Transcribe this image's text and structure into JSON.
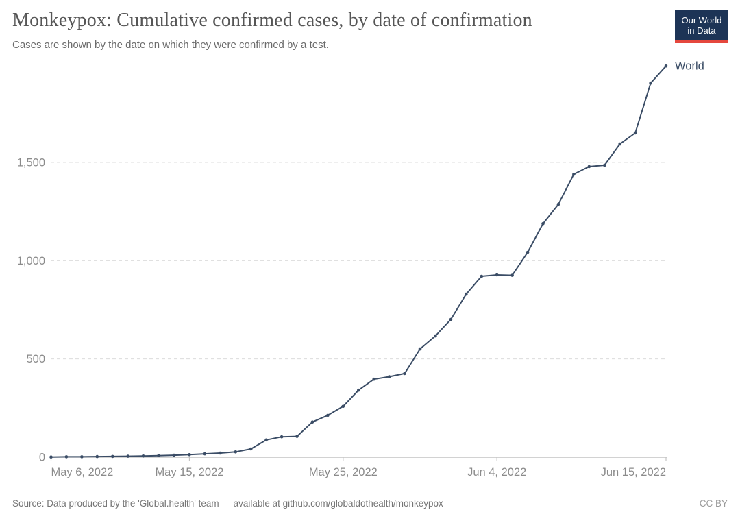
{
  "header": {
    "title": "Monkeypox: Cumulative confirmed cases, by date of confirmation",
    "subtitle": "Cases are shown by the date on which they were confirmed by a test.",
    "logo": {
      "line1": "Our World",
      "line2": "in Data",
      "bg_color": "#1d3456",
      "accent_color": "#e5473d"
    }
  },
  "chart_data": {
    "type": "line",
    "title": "Monkeypox: Cumulative confirmed cases, by date of confirmation",
    "xlabel": "",
    "ylabel": "",
    "grid": "horizontal-dashed",
    "legend_position": "end-of-line-label",
    "ylim": [
      0,
      2030
    ],
    "y_ticks": {
      "values": [
        0,
        500,
        1000,
        1500
      ],
      "labels": [
        "0",
        "500",
        "1,000",
        "1,500"
      ]
    },
    "x_ticks": [
      {
        "label": "May 6, 2022",
        "index": 0,
        "align": "start"
      },
      {
        "label": "May 15, 2022",
        "index": 9,
        "align": "middle"
      },
      {
        "label": "May 25, 2022",
        "index": 19,
        "align": "middle"
      },
      {
        "label": "Jun 4, 2022",
        "index": 29,
        "align": "middle"
      },
      {
        "label": "Jun 15, 2022",
        "index": 40,
        "align": "end"
      }
    ],
    "series": [
      {
        "name": "World",
        "color": "#3b4d66",
        "x": [
          "2022-05-06",
          "2022-05-07",
          "2022-05-08",
          "2022-05-09",
          "2022-05-10",
          "2022-05-11",
          "2022-05-12",
          "2022-05-13",
          "2022-05-14",
          "2022-05-15",
          "2022-05-16",
          "2022-05-17",
          "2022-05-18",
          "2022-05-19",
          "2022-05-20",
          "2022-05-21",
          "2022-05-22",
          "2022-05-23",
          "2022-05-24",
          "2022-05-25",
          "2022-05-26",
          "2022-05-27",
          "2022-05-28",
          "2022-05-29",
          "2022-05-30",
          "2022-05-31",
          "2022-06-01",
          "2022-06-02",
          "2022-06-03",
          "2022-06-04",
          "2022-06-05",
          "2022-06-06",
          "2022-06-07",
          "2022-06-08",
          "2022-06-09",
          "2022-06-10",
          "2022-06-11",
          "2022-06-12",
          "2022-06-13",
          "2022-06-14",
          "2022-06-15"
        ],
        "values": [
          1,
          2,
          2,
          3,
          4,
          5,
          6,
          8,
          10,
          13,
          17,
          21,
          27,
          42,
          88,
          104,
          106,
          179,
          213,
          259,
          341,
          397,
          410,
          426,
          551,
          617,
          701,
          830,
          921,
          928,
          926,
          1043,
          1189,
          1287,
          1440,
          1479,
          1486,
          1594,
          1650,
          1904,
          1991
        ]
      }
    ],
    "end_label": "World",
    "colors": {
      "line": "#3b4d66",
      "gridline": "#dcdcdc",
      "axis_line": "#b8b8b8",
      "tick_mark": "#c4c4c4",
      "axis_text": "#8b8b8b"
    }
  },
  "footer": {
    "source": "Source: Data produced by the 'Global.health' team — available at github.com/globaldothealth/monkeypox",
    "license": "CC BY"
  }
}
